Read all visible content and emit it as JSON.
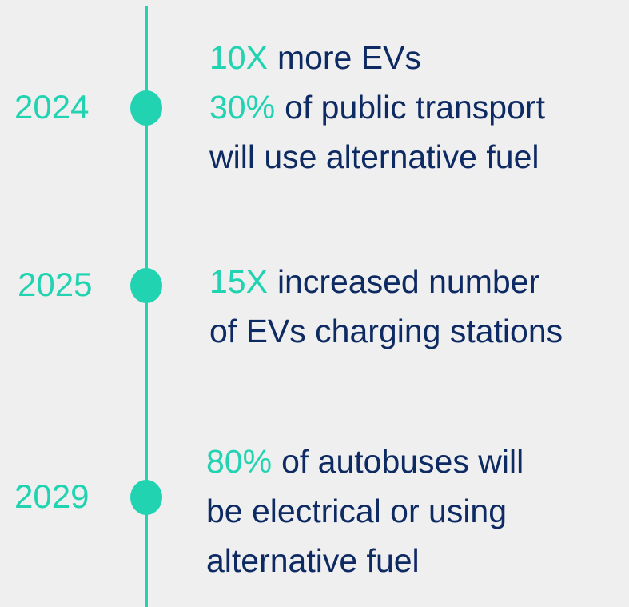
{
  "timeline": {
    "items": [
      {
        "year": "2024",
        "lines": [
          {
            "highlight": "10X",
            "text": "more EVs"
          },
          {
            "highlight": "30%",
            "text": "of public transport"
          },
          {
            "text": "will use alternative fuel"
          }
        ]
      },
      {
        "year": "2025",
        "lines": [
          {
            "highlight": "15X",
            "text": "increased number"
          },
          {
            "text": "of EVs charging stations"
          }
        ]
      },
      {
        "year": "2029",
        "lines": [
          {
            "highlight": "80%",
            "text": "of autobuses will"
          },
          {
            "text": "be electrical or using"
          },
          {
            "text": "alternative fuel"
          }
        ]
      }
    ]
  }
}
